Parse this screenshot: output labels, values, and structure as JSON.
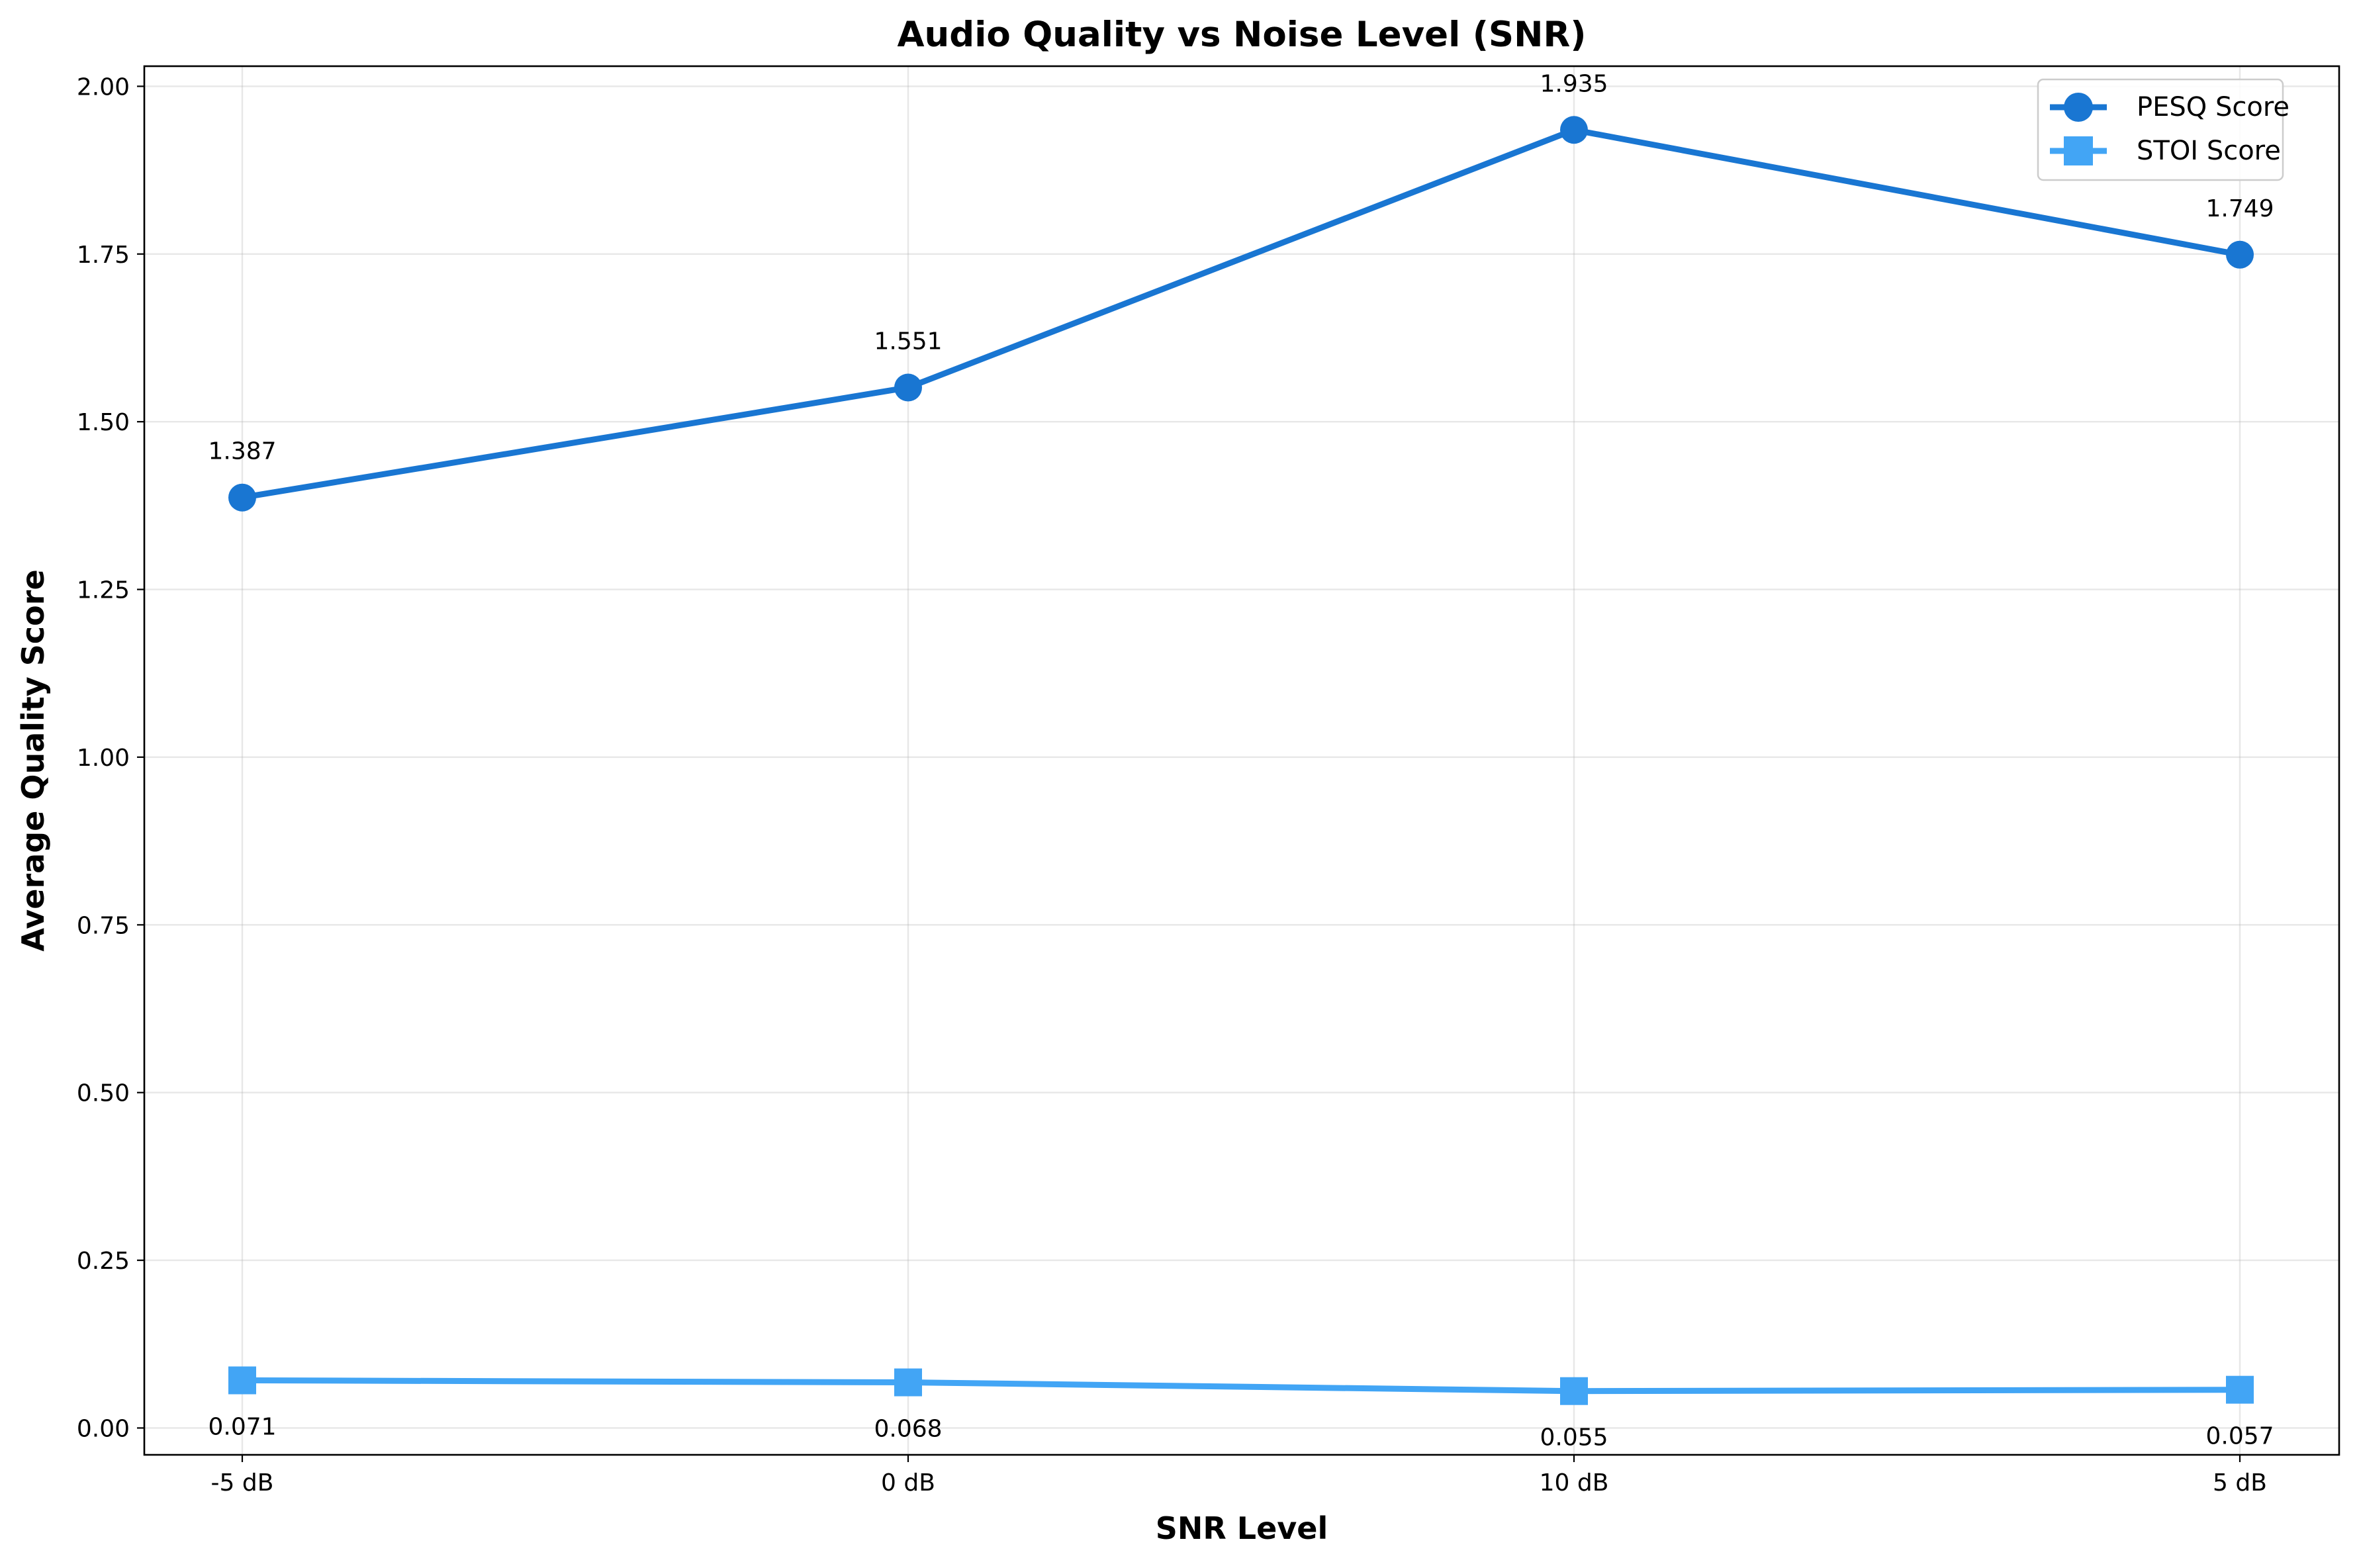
{
  "chart_data": {
    "type": "line",
    "title": "Audio Quality vs Noise Level (SNR)",
    "xlabel": "SNR Level",
    "ylabel": "Average Quality Score",
    "categories": [
      "-5 dB",
      "0 dB",
      "10 dB",
      "5 dB"
    ],
    "ylim": [
      -0.04,
      2.03
    ],
    "yticks": [
      0.0,
      0.25,
      0.5,
      0.75,
      1.0,
      1.25,
      1.5,
      1.75,
      2.0
    ],
    "ytick_labels": [
      "0.00",
      "0.25",
      "0.50",
      "0.75",
      "1.00",
      "1.25",
      "1.50",
      "1.75",
      "2.00"
    ],
    "grid": true,
    "legend_position": "top-right",
    "series": [
      {
        "name": "PESQ Score",
        "values": [
          1.387,
          1.551,
          1.935,
          1.749
        ],
        "labels": [
          "1.387",
          "1.551",
          "1.935",
          "1.749"
        ],
        "marker": "circle",
        "color": "#1976D2",
        "label_position": "above"
      },
      {
        "name": "STOI Score",
        "values": [
          0.071,
          0.068,
          0.055,
          0.057
        ],
        "labels": [
          "0.071",
          "0.068",
          "0.055",
          "0.057"
        ],
        "marker": "square",
        "color": "#42A5F5",
        "label_position": "below"
      }
    ]
  }
}
